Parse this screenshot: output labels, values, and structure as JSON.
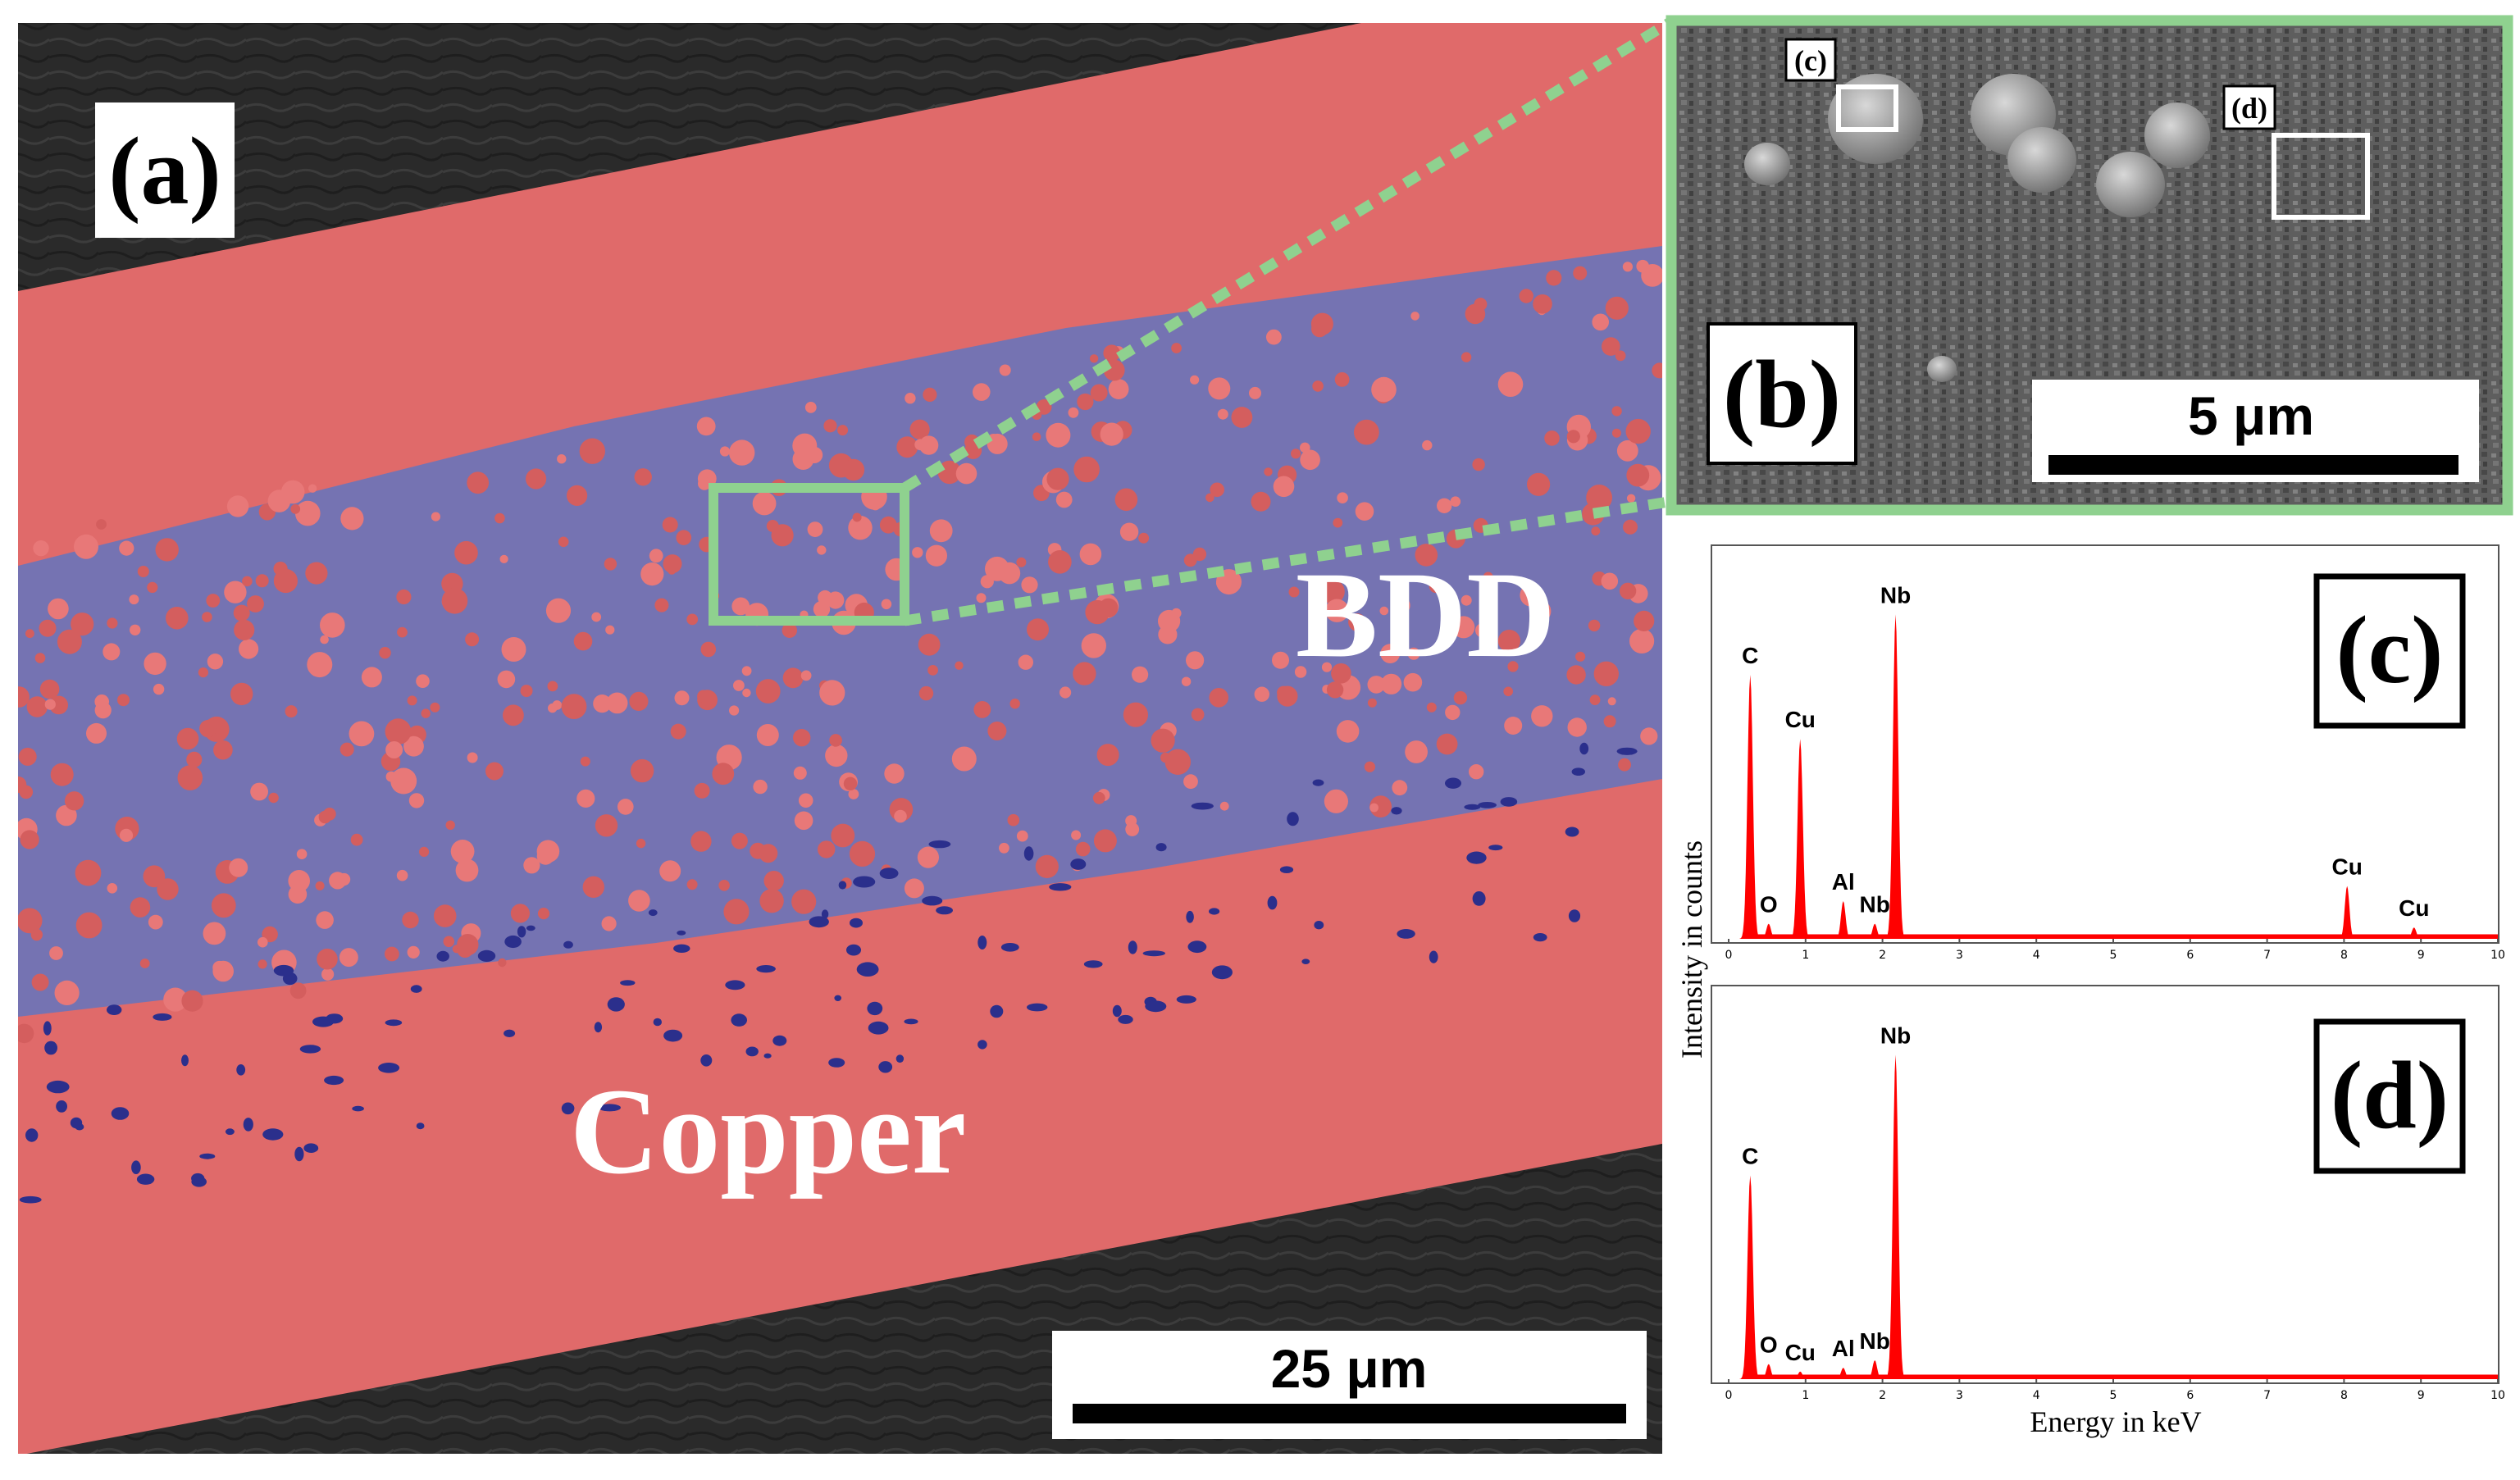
{
  "panels": {
    "a": {
      "tag": "(a)",
      "scale_bar": "25 μm",
      "label_bdd": "BDD",
      "label_copper": "Copper"
    },
    "b": {
      "tag": "(b)",
      "scale_bar": "5 μm",
      "marker_c": "(c)",
      "marker_d": "(d)"
    }
  },
  "colors": {
    "copper": "#e06a6a",
    "bdd": "#6b74b8",
    "highlight": "#8fd18f",
    "spectrum": "#ff0000"
  },
  "chart_data": [
    {
      "type": "area",
      "panel": "(c)",
      "xlabel": "",
      "ylabel": "Intensity in counts",
      "xlim": [
        0,
        10
      ],
      "x_ticks": [
        "0",
        "1",
        "2",
        "3",
        "4",
        "5",
        "6",
        "7",
        "8",
        "9",
        "10"
      ],
      "peaks": [
        {
          "element": "C",
          "energy": 0.28,
          "height": 0.7
        },
        {
          "element": "O",
          "energy": 0.52,
          "height": 0.04
        },
        {
          "element": "Cu",
          "energy": 0.93,
          "height": 0.53
        },
        {
          "element": "Al",
          "energy": 1.49,
          "height": 0.1
        },
        {
          "element": "Nb",
          "energy": 1.9,
          "height": 0.04
        },
        {
          "element": "Nb",
          "energy": 2.17,
          "height": 0.86
        },
        {
          "element": "Cu",
          "energy": 8.04,
          "height": 0.14
        },
        {
          "element": "Cu",
          "energy": 8.91,
          "height": 0.03
        }
      ]
    },
    {
      "type": "area",
      "panel": "(d)",
      "xlabel": "Energy in keV",
      "ylabel": "",
      "xlim": [
        0,
        10
      ],
      "x_ticks": [
        "0",
        "1",
        "2",
        "3",
        "4",
        "5",
        "6",
        "7",
        "8",
        "9",
        "10"
      ],
      "peaks": [
        {
          "element": "C",
          "energy": 0.28,
          "height": 0.54
        },
        {
          "element": "O",
          "energy": 0.52,
          "height": 0.04
        },
        {
          "element": "Cu",
          "energy": 0.93,
          "height": 0.02
        },
        {
          "element": "Al",
          "energy": 1.49,
          "height": 0.03
        },
        {
          "element": "Nb",
          "energy": 1.9,
          "height": 0.05
        },
        {
          "element": "Nb",
          "energy": 2.17,
          "height": 0.86
        }
      ]
    }
  ]
}
